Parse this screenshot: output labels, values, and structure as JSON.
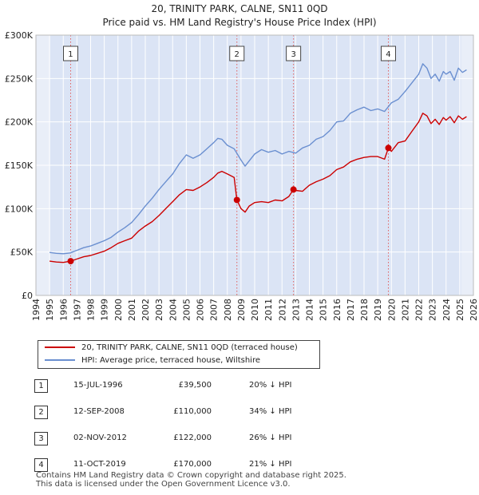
{
  "colors": {
    "property": "#cc0000",
    "hpi": "#6a8fd0",
    "plot_bg": "#dbe4f5",
    "shade": "#e9eef8",
    "vline": "#e06060",
    "grid": "#ffffff"
  },
  "chart_data": {
    "type": "line",
    "title": "20, TRINITY PARK, CALNE, SN11 0QD",
    "subtitle": "Price paid vs. HM Land Registry's House Price Index (HPI)",
    "xlim": [
      1994,
      2026
    ],
    "ylim": [
      0,
      300000
    ],
    "yticks": [
      0,
      50000,
      100000,
      150000,
      200000,
      250000,
      300000
    ],
    "ytick_labels": [
      "£0",
      "£50K",
      "£100K",
      "£150K",
      "£200K",
      "£250K",
      "£300K"
    ],
    "xticks": [
      1994,
      1995,
      1996,
      1997,
      1998,
      1999,
      2000,
      2001,
      2002,
      2003,
      2004,
      2005,
      2006,
      2007,
      2008,
      2009,
      2010,
      2011,
      2012,
      2013,
      2014,
      2015,
      2016,
      2017,
      2018,
      2019,
      2020,
      2021,
      2022,
      2023,
      2024,
      2025,
      2026
    ],
    "xtick_labels": [
      "1994",
      "1995",
      "1996",
      "1997",
      "1998",
      "1999",
      "2000",
      "2001",
      "2002",
      "2003",
      "2004",
      "2005",
      "2006",
      "2007",
      "2008",
      "2009",
      "2010",
      "2011",
      "2012",
      "2013",
      "2014",
      "2015",
      "2016",
      "2017",
      "2018",
      "2019",
      "2020",
      "2021",
      "2022",
      "2023",
      "2024",
      "2025",
      "2026"
    ],
    "shaded_spans": [
      [
        1994,
        1995
      ],
      [
        2025.1,
        2026
      ]
    ],
    "series": [
      {
        "name": "20, TRINITY PARK, CALNE, SN11 0QD (terraced house)",
        "color": "#cc0000",
        "x": [
          1995.0,
          1995.5,
          1996.0,
          1996.54,
          1997.0,
          1997.5,
          1998.0,
          1998.5,
          1999.0,
          1999.5,
          2000.0,
          2000.5,
          2001.0,
          2001.5,
          2002.0,
          2002.5,
          2003.0,
          2003.5,
          2004.0,
          2004.5,
          2005.0,
          2005.5,
          2006.0,
          2006.5,
          2007.0,
          2007.3,
          2007.6,
          2008.0,
          2008.5,
          2008.7,
          2009.0,
          2009.3,
          2009.6,
          2010.0,
          2010.5,
          2011.0,
          2011.5,
          2012.0,
          2012.5,
          2012.84,
          2013.0,
          2013.5,
          2014.0,
          2014.5,
          2015.0,
          2015.5,
          2016.0,
          2016.5,
          2017.0,
          2017.5,
          2018.0,
          2018.5,
          2019.0,
          2019.5,
          2019.78,
          2020.0,
          2020.5,
          2021.0,
          2021.5,
          2022.0,
          2022.3,
          2022.6,
          2022.9,
          2023.2,
          2023.5,
          2023.8,
          2024.0,
          2024.3,
          2024.6,
          2024.9,
          2025.2,
          2025.5
        ],
        "values": [
          39500,
          38500,
          38000,
          39500,
          42000,
          44500,
          46000,
          48500,
          51000,
          55000,
          60000,
          63000,
          66000,
          74000,
          80000,
          85000,
          92000,
          100000,
          108000,
          116000,
          122000,
          121000,
          125000,
          130000,
          136000,
          141000,
          143000,
          140000,
          136000,
          110000,
          100000,
          96000,
          103000,
          107000,
          108000,
          107000,
          110000,
          109000,
          114000,
          122000,
          121000,
          120000,
          127000,
          131000,
          134000,
          138000,
          145000,
          148000,
          154000,
          157000,
          159000,
          160000,
          160000,
          157000,
          170000,
          166000,
          176000,
          178000,
          189000,
          200000,
          210000,
          207000,
          198000,
          203000,
          197000,
          205000,
          202000,
          206000,
          199000,
          207000,
          203000,
          206000
        ]
      },
      {
        "name": "HPI: Average price, terraced house, Wiltshire",
        "color": "#6a8fd0",
        "x": [
          1995.0,
          1995.5,
          1996.0,
          1996.5,
          1997.0,
          1997.5,
          1998.0,
          1998.5,
          1999.0,
          1999.5,
          2000.0,
          2000.5,
          2001.0,
          2001.5,
          2002.0,
          2002.5,
          2003.0,
          2003.5,
          2004.0,
          2004.5,
          2005.0,
          2005.5,
          2006.0,
          2006.5,
          2007.0,
          2007.3,
          2007.6,
          2008.0,
          2008.5,
          2009.0,
          2009.3,
          2009.6,
          2010.0,
          2010.5,
          2011.0,
          2011.5,
          2012.0,
          2012.5,
          2013.0,
          2013.5,
          2014.0,
          2014.5,
          2015.0,
          2015.5,
          2016.0,
          2016.5,
          2017.0,
          2017.5,
          2018.0,
          2018.5,
          2019.0,
          2019.5,
          2020.0,
          2020.5,
          2021.0,
          2021.5,
          2022.0,
          2022.3,
          2022.6,
          2022.9,
          2023.2,
          2023.5,
          2023.8,
          2024.0,
          2024.3,
          2024.6,
          2024.9,
          2025.2,
          2025.5
        ],
        "values": [
          49500,
          48500,
          48000,
          49000,
          52000,
          55000,
          57000,
          60000,
          63000,
          67000,
          73000,
          78000,
          84000,
          93000,
          103000,
          112000,
          122000,
          131000,
          140000,
          152000,
          162000,
          158000,
          162000,
          169000,
          176000,
          181000,
          180000,
          173000,
          169000,
          156000,
          149000,
          155000,
          163000,
          168000,
          165000,
          167000,
          163000,
          166000,
          164000,
          170000,
          173000,
          180000,
          183000,
          190000,
          200000,
          201000,
          210000,
          214000,
          217000,
          213000,
          215000,
          212000,
          222000,
          226000,
          235000,
          245000,
          255000,
          267000,
          262000,
          250000,
          255000,
          247000,
          258000,
          255000,
          258000,
          248000,
          262000,
          257000,
          260000
        ]
      }
    ],
    "markers": [
      {
        "label": "1",
        "x": 1996.54,
        "y": 39500
      },
      {
        "label": "2",
        "x": 2008.7,
        "y": 110000
      },
      {
        "label": "3",
        "x": 2012.84,
        "y": 122000
      },
      {
        "label": "4",
        "x": 2019.78,
        "y": 170000
      }
    ],
    "legend": [
      "20, TRINITY PARK, CALNE, SN11 0QD (terraced house)",
      "HPI: Average price, terraced house, Wiltshire"
    ]
  },
  "sales": [
    {
      "num": "1",
      "date": "15-JUL-1996",
      "price": "£39,500",
      "hpi": "20% ↓ HPI"
    },
    {
      "num": "2",
      "date": "12-SEP-2008",
      "price": "£110,000",
      "hpi": "34% ↓ HPI"
    },
    {
      "num": "3",
      "date": "02-NOV-2012",
      "price": "£122,000",
      "hpi": "26% ↓ HPI"
    },
    {
      "num": "4",
      "date": "11-OCT-2019",
      "price": "£170,000",
      "hpi": "21% ↓ HPI"
    }
  ],
  "footer": {
    "line1": "Contains HM Land Registry data © Crown copyright and database right 2025.",
    "line2": "This data is licensed under the Open Government Licence v3.0."
  }
}
